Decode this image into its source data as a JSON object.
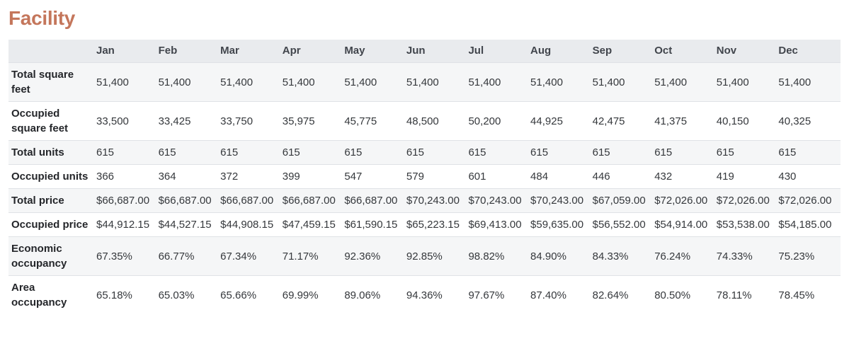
{
  "page": {
    "title": "Facility"
  },
  "colors": {
    "accent": "#c4765b",
    "header_bg": "#e9ebee",
    "stripe_bg": "#f5f6f7",
    "border": "#dfe2e6",
    "text": "#35383c",
    "label_text": "#24262a",
    "header_text": "#41454c"
  },
  "table": {
    "columns": [
      "Jan",
      "Feb",
      "Mar",
      "Apr",
      "May",
      "Jun",
      "Jul",
      "Aug",
      "Sep",
      "Oct",
      "Nov",
      "Dec"
    ],
    "rows": [
      {
        "label": "Total square feet",
        "values": [
          "51,400",
          "51,400",
          "51,400",
          "51,400",
          "51,400",
          "51,400",
          "51,400",
          "51,400",
          "51,400",
          "51,400",
          "51,400",
          "51,400"
        ]
      },
      {
        "label": "Occupied square feet",
        "values": [
          "33,500",
          "33,425",
          "33,750",
          "35,975",
          "45,775",
          "48,500",
          "50,200",
          "44,925",
          "42,475",
          "41,375",
          "40,150",
          "40,325"
        ]
      },
      {
        "label": "Total units",
        "values": [
          "615",
          "615",
          "615",
          "615",
          "615",
          "615",
          "615",
          "615",
          "615",
          "615",
          "615",
          "615"
        ]
      },
      {
        "label": "Occupied units",
        "values": [
          "366",
          "364",
          "372",
          "399",
          "547",
          "579",
          "601",
          "484",
          "446",
          "432",
          "419",
          "430"
        ]
      },
      {
        "label": "Total price",
        "values": [
          "$66,687.00",
          "$66,687.00",
          "$66,687.00",
          "$66,687.00",
          "$66,687.00",
          "$70,243.00",
          "$70,243.00",
          "$70,243.00",
          "$67,059.00",
          "$72,026.00",
          "$72,026.00",
          "$72,026.00"
        ]
      },
      {
        "label": "Occupied price",
        "values": [
          "$44,912.15",
          "$44,527.15",
          "$44,908.15",
          "$47,459.15",
          "$61,590.15",
          "$65,223.15",
          "$69,413.00",
          "$59,635.00",
          "$56,552.00",
          "$54,914.00",
          "$53,538.00",
          "$54,185.00"
        ]
      },
      {
        "label": "Economic occupancy",
        "values": [
          "67.35%",
          "66.77%",
          "67.34%",
          "71.17%",
          "92.36%",
          "92.85%",
          "98.82%",
          "84.90%",
          "84.33%",
          "76.24%",
          "74.33%",
          "75.23%"
        ]
      },
      {
        "label": "Area occupancy",
        "values": [
          "65.18%",
          "65.03%",
          "65.66%",
          "69.99%",
          "89.06%",
          "94.36%",
          "97.67%",
          "87.40%",
          "82.64%",
          "80.50%",
          "78.11%",
          "78.45%"
        ]
      }
    ]
  }
}
